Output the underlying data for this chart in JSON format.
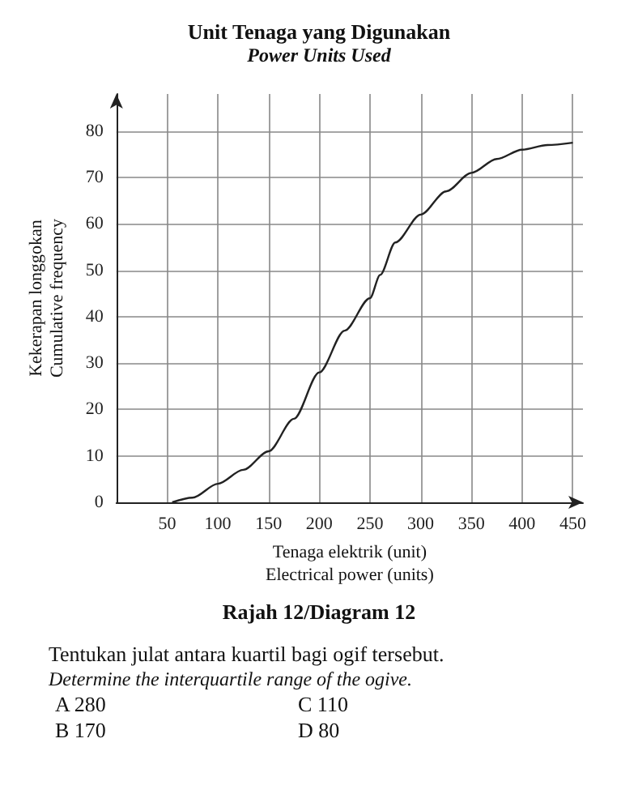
{
  "chart_data": {
    "type": "line",
    "title": "Unit Tenaga yang Digunakan",
    "subtitle": "Power Units Used",
    "xlabel": "Tenaga elektrik (unit)\nElectrical power (units)",
    "ylabel": "Kekerapan longgokan\nCumulative frequency",
    "series": [
      {
        "color": "#222222",
        "x": [
          55,
          75,
          100,
          125,
          150,
          175,
          200,
          225,
          250,
          260,
          275,
          300,
          325,
          350,
          375,
          400,
          425,
          450
        ],
        "values": [
          0,
          1,
          4,
          7,
          11,
          18,
          28,
          37,
          44,
          49,
          56,
          62,
          67,
          71,
          74,
          76,
          77,
          77.5
        ]
      }
    ],
    "xlim": [
      0,
      460
    ],
    "ylim": [
      0,
      88
    ],
    "xticks": [
      50,
      100,
      150,
      200,
      250,
      300,
      350,
      400,
      450
    ],
    "yticks": [
      0,
      10,
      20,
      30,
      40,
      50,
      60,
      70,
      80
    ],
    "grid": true,
    "marker": "none",
    "line_style": "solid",
    "annotations": [
      "Rajah 12/Diagram 12",
      "Tentukan julat antara kuartil bagi ogif tersebut.",
      "Determine the interquartile range of the ogive.",
      "A 280",
      "C 110",
      "B 170",
      "D 80"
    ]
  }
}
